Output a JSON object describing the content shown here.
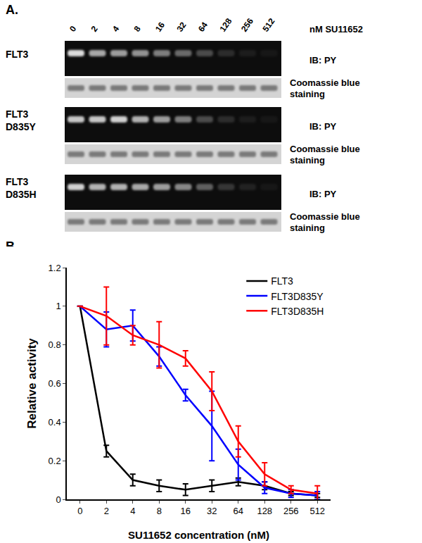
{
  "panel_a": {
    "label": "A.",
    "concentrations": [
      "0",
      "2",
      "4",
      "8",
      "16",
      "32",
      "64",
      "128",
      "256",
      "512"
    ],
    "concentration_unit": "nM SU11652",
    "blots": [
      {
        "name_lines": [
          "FLT3"
        ],
        "py_label": "IB: PY",
        "stain_label_lines": [
          "Coomassie blue",
          "staining"
        ],
        "py_band_intensity": [
          1.0,
          0.75,
          0.7,
          0.65,
          0.55,
          0.45,
          0.3,
          0.15,
          0.08,
          0.05
        ]
      },
      {
        "name_lines": [
          "FLT3",
          "D835Y"
        ],
        "py_label": "IB: PY",
        "stain_label_lines": [
          "Coomassie blue",
          "staining"
        ],
        "py_band_intensity": [
          0.9,
          0.9,
          0.95,
          0.8,
          0.7,
          0.55,
          0.3,
          0.15,
          0.08,
          0.05
        ]
      },
      {
        "name_lines": [
          "FLT3",
          "D835H"
        ],
        "py_label": "IB: PY",
        "stain_label_lines": [
          "Coomassie blue",
          "staining"
        ],
        "py_band_intensity": [
          0.95,
          0.8,
          0.8,
          0.75,
          0.7,
          0.6,
          0.4,
          0.2,
          0.1,
          0.05
        ]
      }
    ]
  },
  "panel_b_label": "B.",
  "chart_data": {
    "type": "line",
    "x_label": "SU11652 concentration (nM)",
    "y_label": "Relative activity",
    "categories": [
      "0",
      "2",
      "4",
      "8",
      "16",
      "32",
      "64",
      "128",
      "256",
      "512"
    ],
    "series": [
      {
        "name": "FLT3",
        "color": "#000000",
        "values": [
          1.0,
          0.25,
          0.1,
          0.07,
          0.05,
          0.07,
          0.09,
          0.07,
          0.03,
          0.02
        ],
        "error": [
          0,
          0.03,
          0.03,
          0.03,
          0.03,
          0.03,
          0.02,
          0.02,
          0.01,
          0.01
        ]
      },
      {
        "name": "FLT3D835Y",
        "color": "#0000ff",
        "values": [
          1.0,
          0.88,
          0.9,
          0.74,
          0.54,
          0.38,
          0.18,
          0.06,
          0.03,
          0.02
        ],
        "error": [
          0,
          0.09,
          0.08,
          0.05,
          0.03,
          0.18,
          0.08,
          0.03,
          0.02,
          0.02
        ]
      },
      {
        "name": "FLT3D835H",
        "color": "#ff0000",
        "values": [
          1.0,
          0.95,
          0.85,
          0.8,
          0.73,
          0.56,
          0.3,
          0.13,
          0.05,
          0.03
        ],
        "error": [
          0,
          0.15,
          0.05,
          0.12,
          0.04,
          0.1,
          0.08,
          0.06,
          0.02,
          0.04
        ]
      }
    ],
    "ylim": [
      0,
      1.2
    ],
    "yticks": [
      0,
      0.2,
      0.4,
      0.6,
      0.8,
      1,
      1.2
    ],
    "grid": false,
    "legend": "top right"
  }
}
